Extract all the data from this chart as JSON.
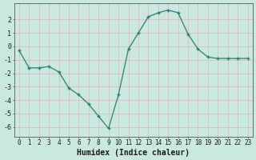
{
  "x": [
    0,
    1,
    2,
    3,
    4,
    5,
    6,
    7,
    8,
    9,
    10,
    11,
    12,
    13,
    14,
    15,
    16,
    17,
    18,
    19,
    20,
    21,
    22,
    23
  ],
  "y": [
    -0.3,
    -1.6,
    -1.6,
    -1.5,
    -1.9,
    -3.1,
    -3.6,
    -4.3,
    -5.2,
    -6.1,
    -3.6,
    -0.2,
    1.0,
    2.2,
    2.5,
    2.7,
    2.5,
    0.9,
    -0.2,
    -0.8,
    -0.9,
    -0.9,
    -0.9,
    -0.9
  ],
  "xlim": [
    -0.5,
    23.5
  ],
  "ylim": [
    -6.7,
    3.2
  ],
  "yticks": [
    -6,
    -5,
    -4,
    -3,
    -2,
    -1,
    0,
    1,
    2
  ],
  "xticks": [
    0,
    1,
    2,
    3,
    4,
    5,
    6,
    7,
    8,
    9,
    10,
    11,
    12,
    13,
    14,
    15,
    16,
    17,
    18,
    19,
    20,
    21,
    22,
    23
  ],
  "xlabel": "Humidex (Indice chaleur)",
  "line_color": "#2e7d6e",
  "marker": "+",
  "bg_color": "#c8e8e0",
  "grid_color": "#e8b8b8",
  "axis_color": "#555555",
  "font_color": "#1a1a1a",
  "tick_font_size": 5.5,
  "xlabel_font_size": 7.0
}
